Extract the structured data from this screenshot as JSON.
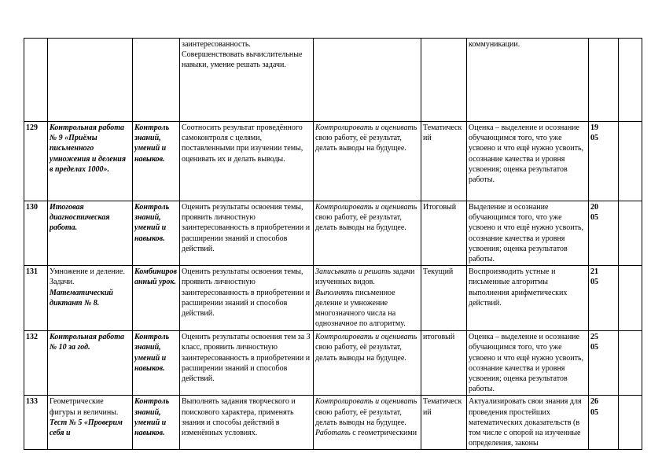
{
  "rows": [
    {
      "cells": [
        [],
        [],
        [],
        [
          {
            "t": "заинтересованность.",
            "s": "r"
          },
          {
            "t": "Совершенствовать вычислительные навыки, умение решать задачи.",
            "s": "r",
            "br": true
          }
        ],
        [],
        [],
        [
          {
            "t": "коммуникации.",
            "s": "r"
          }
        ],
        [],
        []
      ]
    },
    {
      "cells": [
        [
          {
            "t": "129",
            "s": "b"
          }
        ],
        [
          {
            "t": "Контрольная работа № 9 «Приёмы письменного умножения и деления в пределах 1000».",
            "s": "bi"
          }
        ],
        [
          {
            "t": "Контроль знаний, умений и навыков.",
            "s": "bi"
          }
        ],
        [
          {
            "t": "Соотносить результат проведённого самоконтроля с целями, поставленными при изучении темы, оценивать их и делать выводы.",
            "s": "r"
          }
        ],
        [
          {
            "t": "Контролировать и оценивать",
            "s": "i"
          },
          {
            "t": " свою работу, её результат, делать выводы на будущее.",
            "s": "r"
          }
        ],
        [
          {
            "t": "Тематический",
            "s": "r"
          }
        ],
        [
          {
            "t": "Оценка – выделение и осознание обучающимся того, что уже усвоено и что ещё нужно усвоить, осознание качества и уровня усвоения; оценка результатов работы.",
            "s": "r"
          }
        ],
        [
          {
            "t": "19",
            "s": "b"
          },
          {
            "t": "05",
            "s": "b",
            "br": true
          }
        ],
        []
      ]
    },
    {
      "cells": [
        [
          {
            "t": "130",
            "s": "b"
          }
        ],
        [
          {
            "t": "Итоговая диагностическая работа.",
            "s": "bi"
          }
        ],
        [
          {
            "t": "Контроль знаний, умений и навыков.",
            "s": "bi"
          }
        ],
        [
          {
            "t": "Оценить результаты освоения темы, проявить личностную заинтересованность в приобретении и расширении знаний и способов действий.",
            "s": "r"
          }
        ],
        [
          {
            "t": "Контролировать и оценивать",
            "s": "i"
          },
          {
            "t": " свою работу, её результат, делать выводы на будущее.",
            "s": "r"
          }
        ],
        [
          {
            "t": "Итоговый",
            "s": "r"
          }
        ],
        [
          {
            "t": "Выделение и осознание обучающимся того, что уже усвоено и что ещё нужно усвоить, осознание качества и уровня усвоения; оценка результатов работы.",
            "s": "r"
          }
        ],
        [
          {
            "t": "20",
            "s": "b"
          },
          {
            "t": "05",
            "s": "b",
            "br": true
          }
        ],
        []
      ]
    },
    {
      "cells": [
        [
          {
            "t": "131",
            "s": "b"
          }
        ],
        [
          {
            "t": "Умножение и деление. Задачи.",
            "s": "r"
          },
          {
            "t": "Математический диктант № 8.",
            "s": "bi",
            "br": true
          }
        ],
        [
          {
            "t": "Комбинированный урок.",
            "s": "bi"
          }
        ],
        [
          {
            "t": "Оценить результаты освоения темы, проявить личностную заинтересованность в приобретении и расширении знаний и способов действий.",
            "s": "r"
          }
        ],
        [
          {
            "t": "Записывать и решать",
            "s": "i"
          },
          {
            "t": " задачи изученных видов.",
            "s": "r"
          },
          {
            "t": "Выполнять",
            "s": "i",
            "br": true
          },
          {
            "t": " письменное деление и умножение многозначного числа на однозначное по алгоритму.",
            "s": "r"
          }
        ],
        [
          {
            "t": "Текущий",
            "s": "r"
          }
        ],
        [
          {
            "t": "Воспроизводить устные и письменные алгоритмы выполнения арифметических действий.",
            "s": "r"
          }
        ],
        [
          {
            "t": "21",
            "s": "b"
          },
          {
            "t": "05",
            "s": "b",
            "br": true
          }
        ],
        []
      ]
    },
    {
      "cells": [
        [
          {
            "t": "132",
            "s": "b"
          }
        ],
        [
          {
            "t": "Контрольная работа № 10 за год.",
            "s": "bi"
          }
        ],
        [
          {
            "t": "Контроль знаний, умений и навыков.",
            "s": "bi"
          }
        ],
        [
          {
            "t": "Оценить результаты освоения тем за 3 класс, проявить личностную заинтересованность в приобретении и расширении знаний и способов действий.",
            "s": "r"
          }
        ],
        [
          {
            "t": "Контролировать и оценивать",
            "s": "i"
          },
          {
            "t": " свою работу, её результат, делать выводы на будущее.",
            "s": "r"
          }
        ],
        [
          {
            "t": "итоговый",
            "s": "r"
          }
        ],
        [
          {
            "t": "Оценка – выделение и осознание обучающимся того, что уже усвоено и что ещё нужно усвоить, осознание качества и уровня усвоения; оценка результатов работы.",
            "s": "r"
          }
        ],
        [
          {
            "t": "25",
            "s": "b"
          },
          {
            "t": "05",
            "s": "b",
            "br": true
          }
        ],
        []
      ]
    },
    {
      "cells": [
        [
          {
            "t": "133",
            "s": "b"
          }
        ],
        [
          {
            "t": "Геометрические фигуры и величины.",
            "s": "r"
          },
          {
            "t": "Тест № 5 «Проверим себя и",
            "s": "bi",
            "br": true
          }
        ],
        [
          {
            "t": "Контроль знаний, умений и навыков.",
            "s": "bi"
          }
        ],
        [
          {
            "t": "Выполнять задания творческого и поискового характера, применять знания и способы действий в изменённых условиях.",
            "s": "r"
          }
        ],
        [
          {
            "t": "Контролировать и оценивать",
            "s": "i"
          },
          {
            "t": " свою работу, её результат, делать выводы на будущее. ",
            "s": "r"
          },
          {
            "t": "Работать",
            "s": "i"
          },
          {
            "t": " с геометрическими",
            "s": "r"
          }
        ],
        [
          {
            "t": "Тематический",
            "s": "r"
          }
        ],
        [
          {
            "t": "Актуализировать свои знания для проведения простейших математических доказательств (в том числе с опорой на изученные определения, законы",
            "s": "r"
          }
        ],
        [
          {
            "t": "26",
            "s": "b"
          },
          {
            "t": "05",
            "s": "b",
            "br": true
          }
        ],
        []
      ]
    }
  ]
}
